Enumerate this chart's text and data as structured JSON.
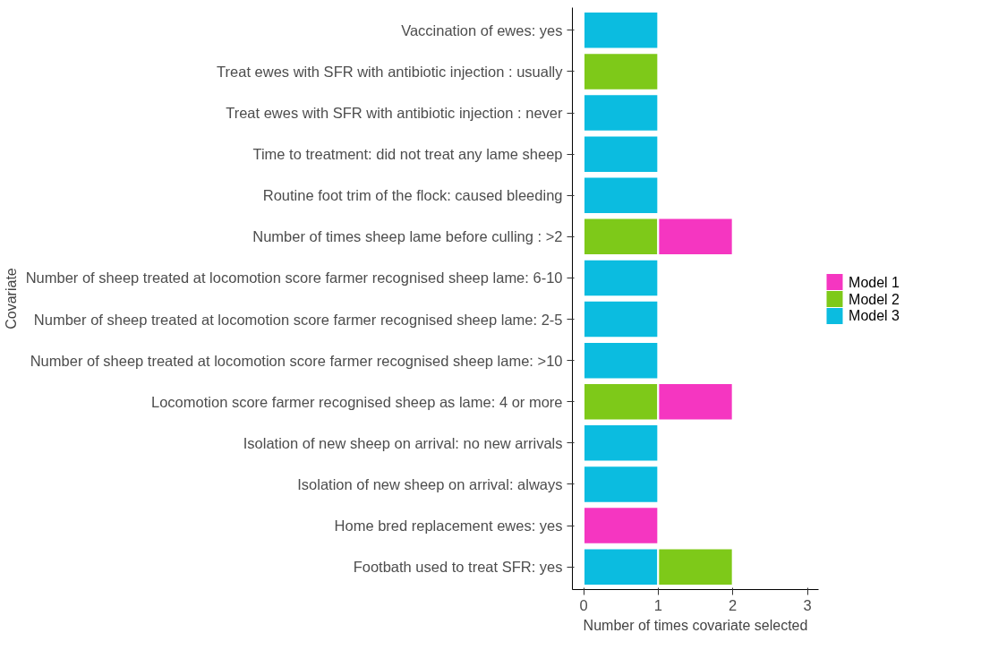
{
  "chart_data": {
    "type": "bar",
    "orientation": "horizontal",
    "stacked": true,
    "xlabel": "Number of times covariate selected",
    "ylabel": "Covariate",
    "categories": [
      "Vaccination of ewes: yes",
      "Treat ewes with SFR with antibiotic injection : usually",
      "Treat ewes with SFR with antibiotic injection : never",
      "Time to treatment: did not treat any lame sheep",
      "Routine foot trim of the flock: caused bleeding",
      "Number of times sheep lame before culling : >2",
      "Number of sheep treated at locomotion score farmer recognised sheep lame: 6-10",
      "Number of sheep treated at locomotion score farmer recognised sheep lame: 2-5",
      "Number of sheep treated at locomotion score farmer recognised sheep lame: >10",
      "Locomotion score farmer recognised sheep as lame: 4 or more",
      "Isolation of new sheep on arrival: no new arrivals",
      "Isolation of new sheep on arrival: always",
      "Home bred replacement ewes: yes",
      "Footbath used to treat SFR: yes"
    ],
    "series": [
      {
        "name": "Model 3",
        "color": "#0bbce0",
        "values": [
          1,
          null,
          1,
          1,
          1,
          null,
          1,
          1,
          1,
          null,
          1,
          1,
          null,
          1
        ]
      },
      {
        "name": "Model 2",
        "color": "#7ec919",
        "values": [
          null,
          1,
          null,
          null,
          null,
          1,
          null,
          null,
          null,
          1,
          null,
          null,
          null,
          1
        ]
      },
      {
        "name": "Model 1",
        "color": "#f536c1",
        "values": [
          null,
          null,
          null,
          null,
          null,
          1,
          null,
          null,
          null,
          1,
          null,
          null,
          1,
          null
        ]
      }
    ],
    "xlim": [
      -0.15,
      3.15
    ],
    "xticks": [
      0,
      1,
      2,
      3
    ],
    "grid": false,
    "legend": "right"
  }
}
